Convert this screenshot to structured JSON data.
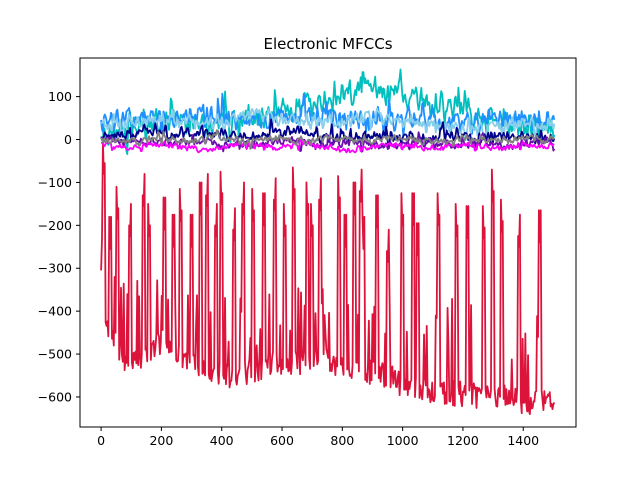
{
  "chart_data": {
    "type": "line",
    "title": "Electronic MFCCs",
    "xlabel": "",
    "ylabel": "",
    "xlim": [
      -70,
      1575
    ],
    "ylim": [
      -670,
      190
    ],
    "xticks": [
      0,
      200,
      400,
      600,
      800,
      1000,
      1200,
      1400
    ],
    "yticks": [
      100,
      0,
      -100,
      -200,
      -300,
      -400,
      -500,
      -600
    ],
    "grid": false,
    "legend": "none",
    "n_frames": 1505,
    "series": [
      {
        "color": "#DC143C",
        "base": [
          -400,
          -480,
          -530,
          -500,
          -470,
          -490,
          -520,
          -540,
          -545,
          -550,
          -540,
          -530,
          -520,
          -520,
          -515,
          -510,
          -520,
          -530,
          -540,
          -545,
          -560,
          -575,
          -580,
          -585,
          -590,
          -595,
          -600,
          -600,
          -605,
          -610,
          -615,
          -612
        ],
        "peaks": [
          [
            0,
            -305
          ],
          [
            10,
            -105
          ],
          [
            30,
            -255
          ],
          [
            55,
            -210
          ],
          [
            95,
            -250
          ],
          [
            140,
            -180
          ],
          [
            160,
            -250
          ],
          [
            210,
            -210
          ],
          [
            240,
            -250
          ],
          [
            265,
            -215
          ],
          [
            300,
            -250
          ],
          [
            330,
            -175
          ],
          [
            350,
            -180
          ],
          [
            380,
            -250
          ],
          [
            400,
            -175
          ],
          [
            440,
            -260
          ],
          [
            470,
            -200
          ],
          [
            505,
            -215
          ],
          [
            540,
            -200
          ],
          [
            575,
            -190
          ],
          [
            610,
            -250
          ],
          [
            640,
            -165
          ],
          [
            685,
            -200
          ],
          [
            700,
            -250
          ],
          [
            725,
            -190
          ],
          [
            790,
            -185
          ],
          [
            810,
            -250
          ],
          [
            840,
            -175
          ],
          [
            860,
            -170
          ],
          [
            870,
            -255
          ],
          [
            915,
            -205
          ],
          [
            950,
            -310
          ],
          [
            1000,
            -225
          ],
          [
            1035,
            -200
          ],
          [
            1050,
            -270
          ],
          [
            1120,
            -225
          ],
          [
            1180,
            -250
          ],
          [
            1215,
            -230
          ],
          [
            1270,
            -255
          ],
          [
            1300,
            -170
          ],
          [
            1330,
            -240
          ],
          [
            1385,
            -275
          ],
          [
            1455,
            -240
          ]
        ],
        "seed": 11
      },
      {
        "color": "#00BFBF",
        "base": [
          10,
          20,
          30,
          40,
          45,
          45,
          40,
          40,
          45,
          50,
          55,
          60,
          65,
          70,
          80,
          90,
          100,
          110,
          120,
          120,
          110,
          100,
          90,
          80,
          70,
          60,
          50,
          40,
          35,
          30,
          25,
          20
        ],
        "amp": 40,
        "seed": 21
      },
      {
        "color": "#1E90FF",
        "base": [
          40,
          45,
          50,
          55,
          50,
          50,
          55,
          60,
          55,
          50,
          45,
          50,
          55,
          60,
          55,
          50,
          45,
          45,
          40,
          40,
          45,
          50,
          45,
          40,
          40,
          35,
          40,
          45,
          50,
          45,
          40,
          40
        ],
        "amp": 30,
        "seed": 31
      },
      {
        "color": "#87CEEB",
        "base": [
          30,
          35,
          40,
          45,
          45,
          45,
          40,
          40,
          45,
          50,
          55,
          55,
          50,
          45,
          40,
          40,
          40,
          45,
          50,
          50,
          45,
          40,
          35,
          30,
          25,
          25,
          25,
          30,
          35,
          40,
          35,
          30
        ],
        "amp": 20,
        "seed": 41
      },
      {
        "color": "#00008B",
        "base": [
          10,
          10,
          15,
          20,
          15,
          10,
          15,
          20,
          15,
          10,
          5,
          10,
          15,
          20,
          15,
          10,
          5,
          0,
          5,
          10,
          5,
          0,
          0,
          5,
          10,
          5,
          0,
          5,
          10,
          5,
          0,
          0
        ],
        "amp": 15,
        "seed": 51
      },
      {
        "color": "#6A0DAD",
        "base": [
          0,
          -5,
          -5,
          0,
          -5,
          -10,
          -5,
          0,
          -10,
          -15,
          -15,
          -10,
          -5,
          0,
          -10,
          -15,
          -10,
          -5,
          -10,
          -15,
          -10,
          -5,
          -5,
          -10,
          -15,
          -10,
          -5,
          -10,
          -15,
          -10,
          -5,
          -5
        ],
        "amp": 12,
        "seed": 61
      },
      {
        "color": "#FF00FF",
        "base": [
          -10,
          -15,
          -20,
          -15,
          -10,
          -15,
          -20,
          -25,
          -20,
          -15,
          -10,
          -15,
          -20,
          -15,
          -10,
          -15,
          -20,
          -25,
          -20,
          -15,
          -10,
          -15,
          -20,
          -20,
          -15,
          -10,
          -15,
          -20,
          -15,
          -10,
          -15,
          -15
        ],
        "amp": 8,
        "seed": 71
      },
      {
        "color": "#808080",
        "base": [
          0,
          0,
          -5,
          0,
          5,
          0,
          -5,
          0,
          5,
          0,
          -5,
          0,
          5,
          0,
          -5,
          0,
          5,
          0,
          -5,
          0,
          5,
          0,
          0,
          -5,
          0,
          5,
          0,
          -5,
          0,
          5,
          0,
          0
        ],
        "amp": 10,
        "seed": 81
      }
    ]
  }
}
